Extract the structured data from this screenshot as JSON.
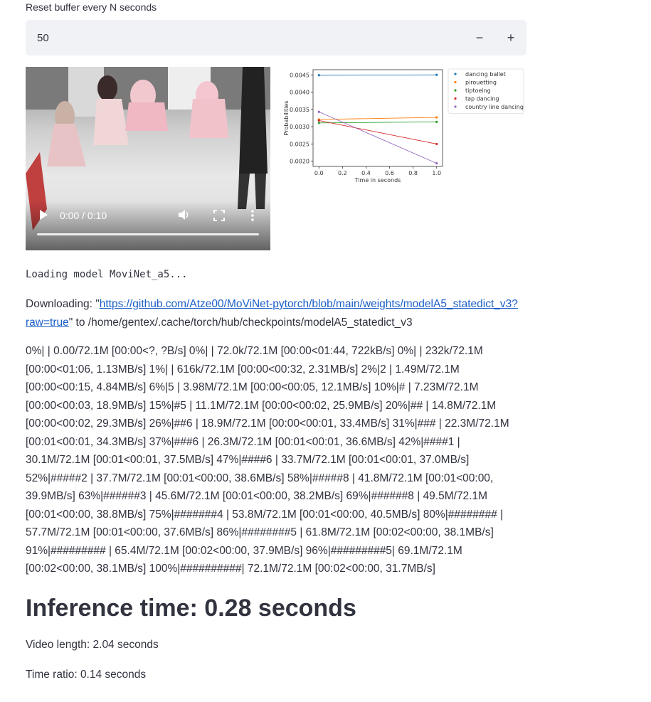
{
  "settings": {
    "reset_label": "Reset buffer every N seconds",
    "reset_value": "50",
    "decrement": "−",
    "increment": "+"
  },
  "video": {
    "time": "0:00 / 0:10",
    "progress": 0
  },
  "chart_data": {
    "type": "line",
    "xlabel": "Time in seconds",
    "ylabel": "Probabilities",
    "xlim": [
      -0.05,
      1.05
    ],
    "ylim": [
      0.00185,
      0.00465
    ],
    "xticks": [
      "0.0",
      "0.2",
      "0.4",
      "0.6",
      "0.8",
      "1.0"
    ],
    "yticks": [
      "0.0020",
      "0.0025",
      "0.0030",
      "0.0035",
      "0.0040",
      "0.0045"
    ],
    "legend_position": "outside-right",
    "x": [
      0,
      1
    ],
    "series": [
      {
        "name": "dancing ballet",
        "color": "#1f77b4",
        "values": [
          0.00449,
          0.0045
        ]
      },
      {
        "name": "pirouetting",
        "color": "#ff7f0e",
        "values": [
          0.00321,
          0.00327
        ]
      },
      {
        "name": "tiptoeing",
        "color": "#2ca02c",
        "values": [
          0.00311,
          0.00314
        ]
      },
      {
        "name": "tap dancing",
        "color": "#d62728",
        "values": [
          0.00318,
          0.0025
        ]
      },
      {
        "name": "country line dancing",
        "color": "#9467bd",
        "values": [
          0.00343,
          0.00194
        ]
      }
    ]
  },
  "log": {
    "loading": "Loading model MoviNet_a5...",
    "download_prefix": "Downloading: \"",
    "download_url": "https://github.com/Atze00/MoViNet-pytorch/blob/main/weights/modelA5_statedict_v3?raw=true",
    "download_suffix": "\" to /home/gentex/.cache/torch/hub/checkpoints/modelA5_statedict_v3",
    "progress_text": "0%| | 0.00/72.1M [00:00<?, ?B/s] 0%| | 72.0k/72.1M [00:00<01:44, 722kB/s] 0%| | 232k/72.1M [00:00<01:06, 1.13MB/s] 1%| | 616k/72.1M [00:00<00:32, 2.31MB/s] 2%|2 | 1.49M/72.1M [00:00<00:15, 4.84MB/s] 6%|5 | 3.98M/72.1M [00:00<00:05, 12.1MB/s] 10%|# | 7.23M/72.1M [00:00<00:03, 18.9MB/s] 15%|#5 | 11.1M/72.1M [00:00<00:02, 25.9MB/s] 20%|## | 14.8M/72.1M [00:00<00:02, 29.3MB/s] 26%|##6 | 18.9M/72.1M [00:00<00:01, 33.4MB/s] 31%|### | 22.3M/72.1M [00:01<00:01, 34.3MB/s] 37%|###6 | 26.3M/72.1M [00:01<00:01, 36.6MB/s] 42%|####1 | 30.1M/72.1M [00:01<00:01, 37.5MB/s] 47%|####6 | 33.7M/72.1M [00:01<00:01, 37.0MB/s] 52%|#####2 | 37.7M/72.1M [00:01<00:00, 38.6MB/s] 58%|#####8 | 41.8M/72.1M [00:01<00:00, 39.9MB/s] 63%|######3 | 45.6M/72.1M [00:01<00:00, 38.2MB/s] 69%|######8 | 49.5M/72.1M [00:01<00:00, 38.8MB/s] 75%|#######4 | 53.8M/72.1M [00:01<00:00, 40.5MB/s] 80%|######## | 57.7M/72.1M [00:01<00:00, 37.6MB/s] 86%|########5 | 61.8M/72.1M [00:02<00:00, 38.1MB/s] 91%|######### | 65.4M/72.1M [00:02<00:00, 37.9MB/s] 96%|#########5| 69.1M/72.1M [00:02<00:00, 38.1MB/s] 100%|##########| 72.1M/72.1M [00:02<00:00, 31.7MB/s]"
  },
  "results": {
    "inference": "Inference time: 0.28 seconds",
    "video_length": "Video length: 2.04 seconds",
    "time_ratio": "Time ratio: 0.14 seconds"
  }
}
